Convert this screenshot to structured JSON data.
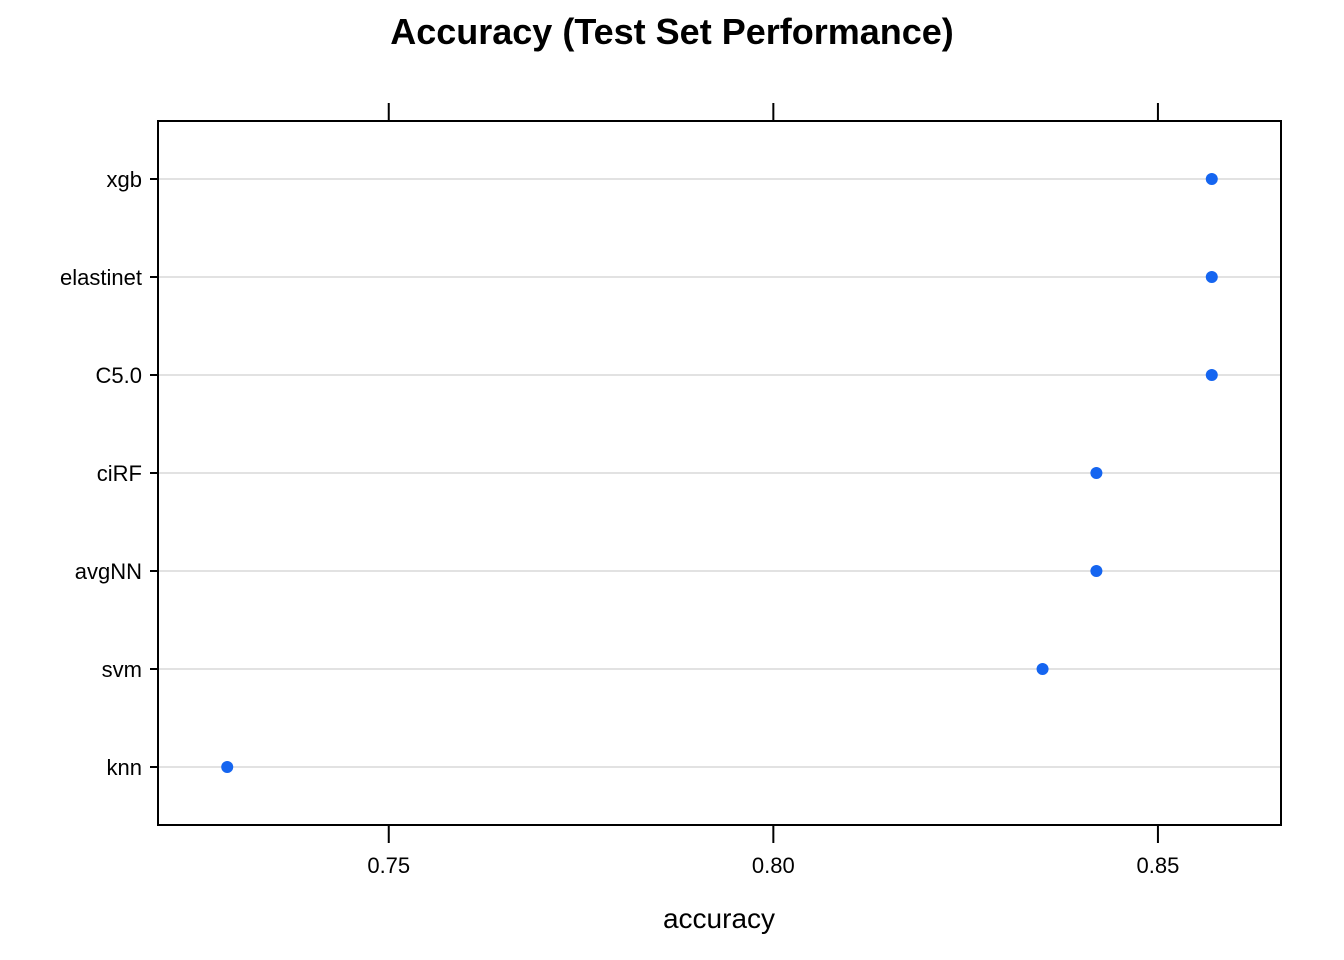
{
  "chart_data": {
    "type": "scatter",
    "title": "Accuracy (Test Set Performance)",
    "xlabel": "accuracy",
    "ylabel": "",
    "xlim": [
      0.72,
      0.866
    ],
    "xticks": [
      {
        "value": 0.75,
        "label": "0.75"
      },
      {
        "value": 0.8,
        "label": "0.80"
      },
      {
        "value": 0.85,
        "label": "0.85"
      }
    ],
    "categories": [
      "xgb",
      "elastinet",
      "C5.0",
      "ciRF",
      "avgNN",
      "svm",
      "knn"
    ],
    "values": [
      0.857,
      0.857,
      0.857,
      0.842,
      0.842,
      0.835,
      0.729
    ],
    "grid": true,
    "colors": {
      "point": "#1565f0",
      "grid": "#e2e2e2",
      "frame": "#000000"
    }
  }
}
